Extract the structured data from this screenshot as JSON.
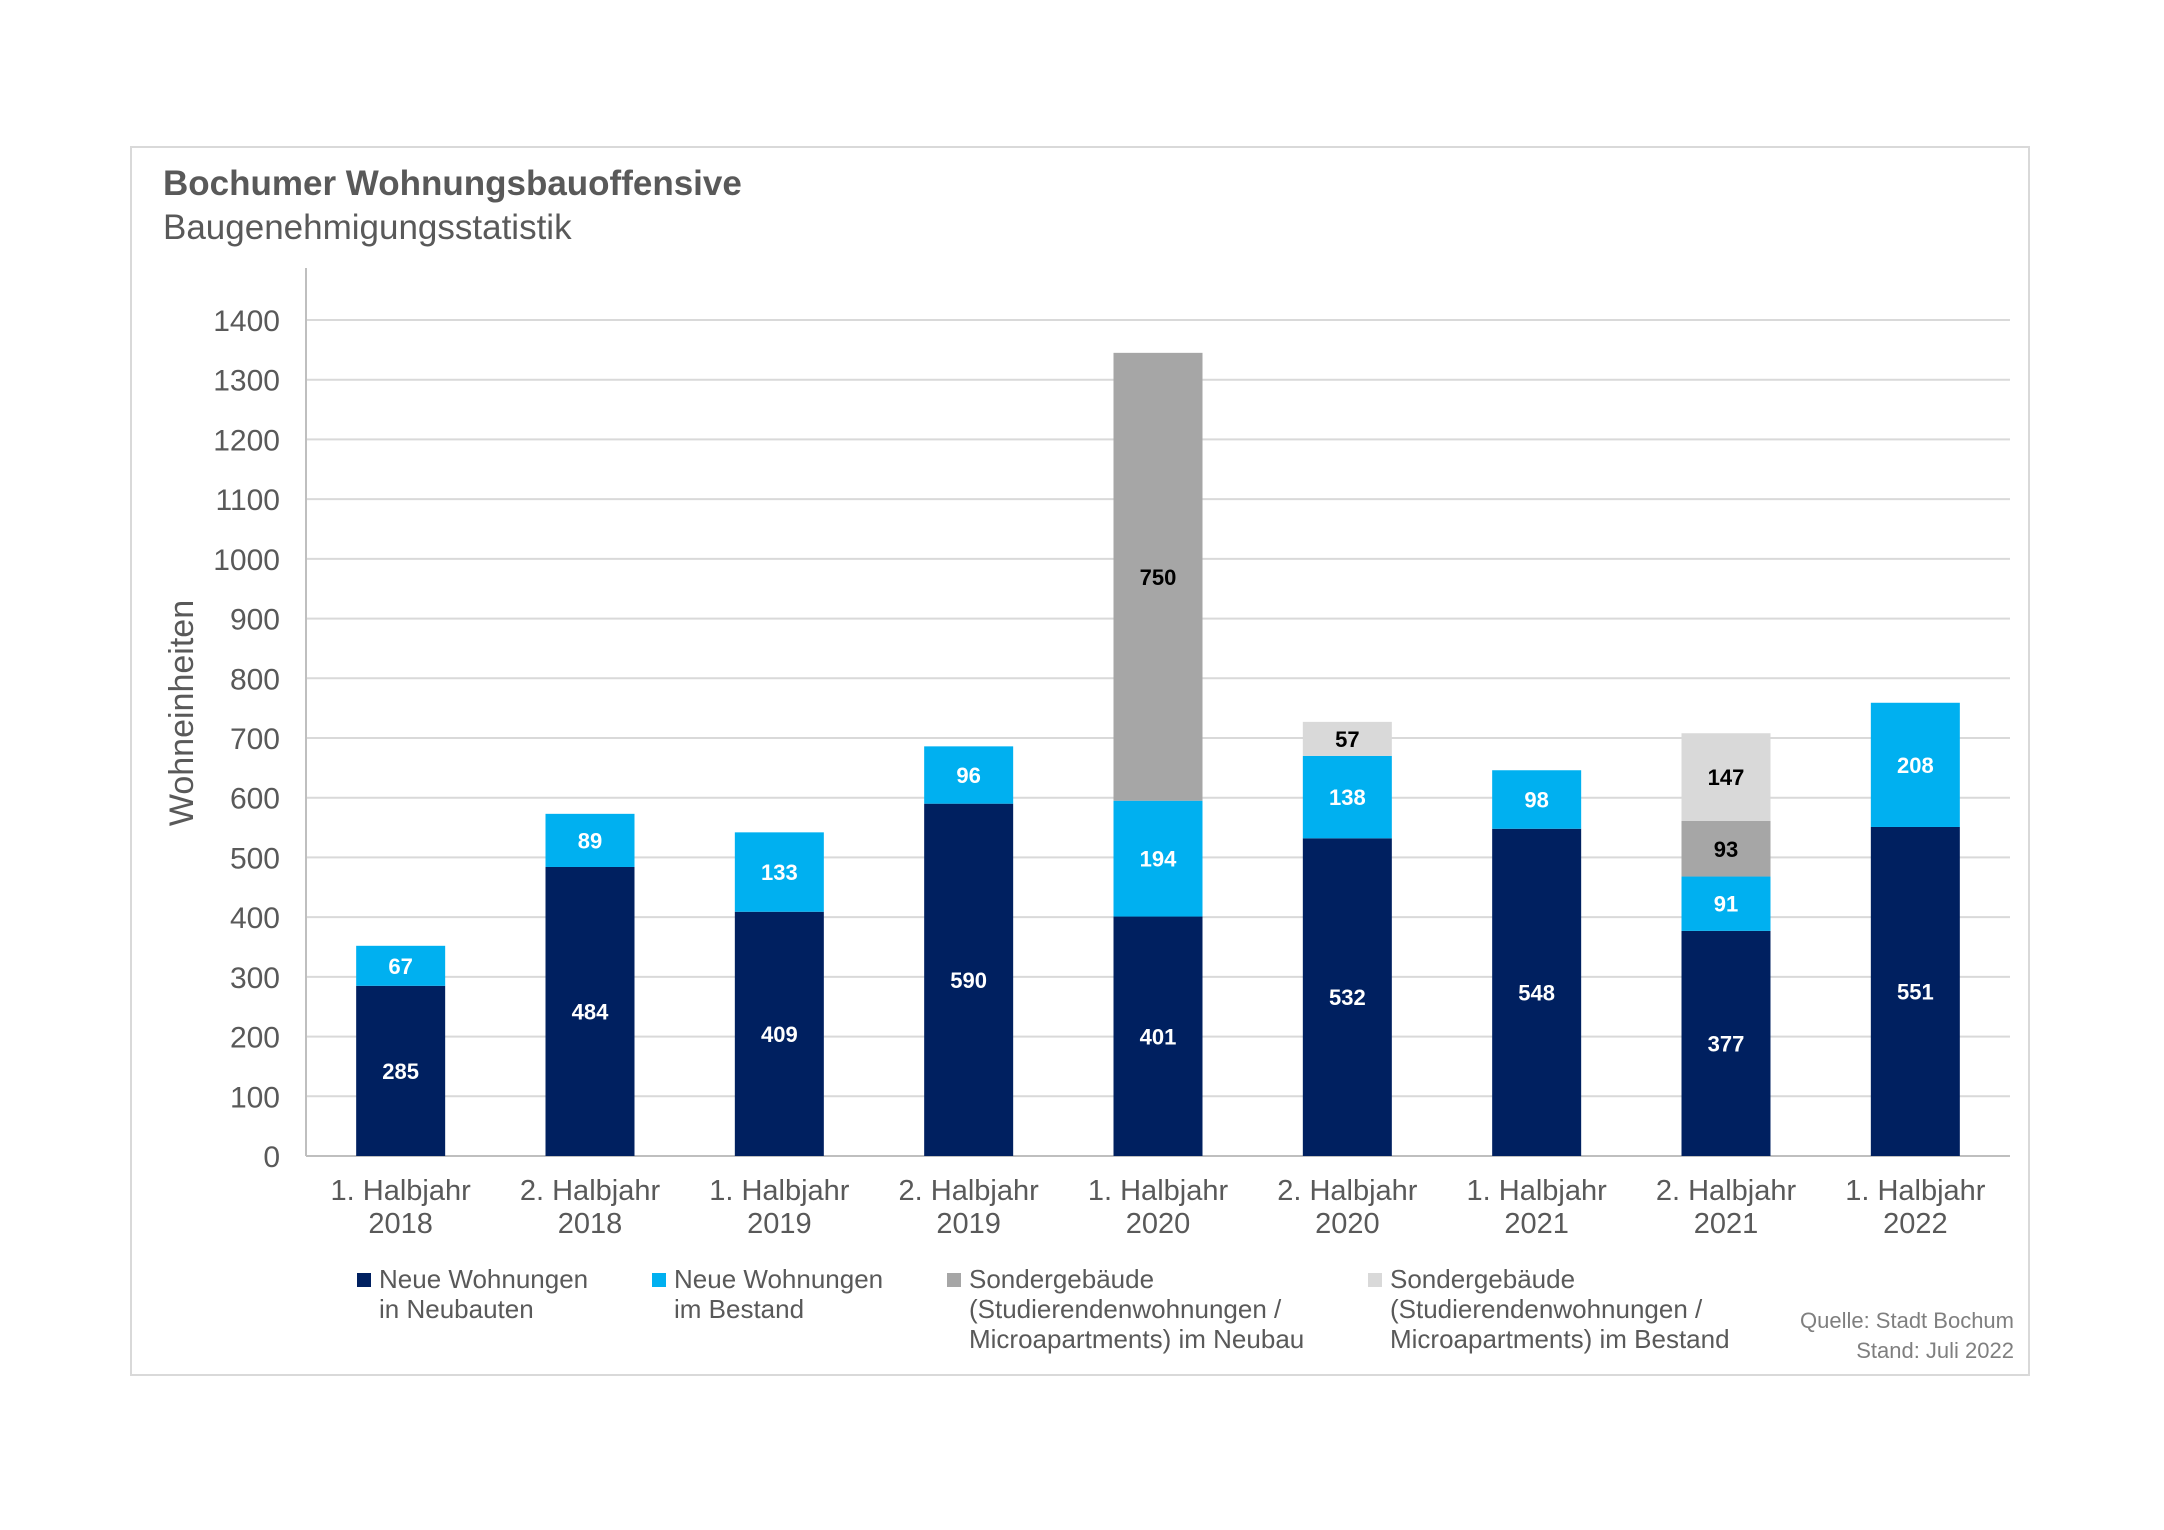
{
  "title": "Bochumer Wohnungsbauoffensive",
  "subtitle": "Baugenehmigungsstatistik",
  "source_line1": "Quelle: Stadt Bochum",
  "source_line2": "Stand: Juli 2022",
  "chart_data": {
    "type": "bar",
    "stacked": true,
    "ylabel": "Wohneinheiten",
    "xlabel": "",
    "ylim": [
      0,
      1400
    ],
    "yticks": [
      0,
      100,
      200,
      300,
      400,
      500,
      600,
      700,
      800,
      900,
      1000,
      1100,
      1200,
      1300,
      1400
    ],
    "grid": true,
    "legend_position": "bottom",
    "categories": [
      "1. Halbjahr\n2018",
      "2. Halbjahr\n2018",
      "1. Halbjahr\n2019",
      "2. Halbjahr\n2019",
      "1. Halbjahr\n2020",
      "2. Halbjahr\n2020",
      "1. Halbjahr\n2021",
      "2. Halbjahr\n2021",
      "1. Halbjahr\n2022"
    ],
    "series": [
      {
        "name": "Neue Wohnungen\nin Neubauten",
        "color": "#002060",
        "label_color": "#ffffff",
        "values": [
          285,
          484,
          409,
          590,
          401,
          532,
          548,
          377,
          551
        ]
      },
      {
        "name": "Neue Wohnungen\nim Bestand",
        "color": "#00b0f0",
        "label_color": "#ffffff",
        "values": [
          67,
          89,
          133,
          96,
          194,
          138,
          98,
          91,
          208
        ]
      },
      {
        "name": "Sondergebäude\n(Studierendenwohnungen /\nMicroapartments) im Neubau",
        "color": "#a6a6a6",
        "label_color": "#000000",
        "values": [
          null,
          null,
          null,
          null,
          750,
          null,
          null,
          93,
          null
        ]
      },
      {
        "name": "Sondergebäude\n(Studierendenwohnungen /\nMicroapartments) im Bestand",
        "color": "#d9d9d9",
        "label_color": "#000000",
        "values": [
          null,
          null,
          null,
          null,
          null,
          57,
          null,
          147,
          null
        ]
      }
    ]
  }
}
